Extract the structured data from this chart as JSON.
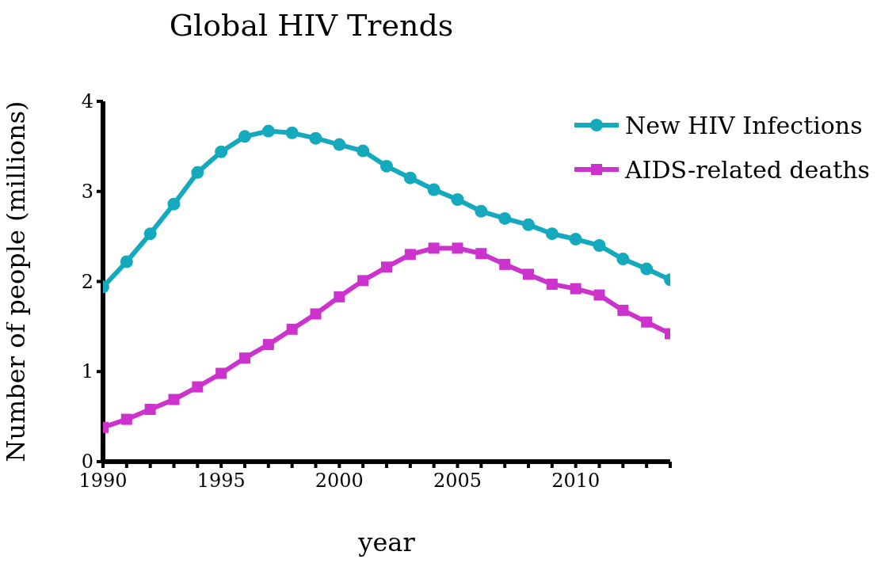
{
  "chart_data": {
    "type": "line",
    "title": "Global HIV Trends",
    "xlabel": "year",
    "ylabel": "Number of people (millions)",
    "x": [
      1990,
      1991,
      1992,
      1993,
      1994,
      1995,
      1996,
      1997,
      1998,
      1999,
      2000,
      2001,
      2002,
      2003,
      2004,
      2005,
      2006,
      2007,
      2008,
      2009,
      2010,
      2011,
      2012,
      2013,
      2014
    ],
    "series": [
      {
        "name": "New HIV Infections",
        "color": "#14a9bd",
        "marker": "circle",
        "values": [
          1.94,
          2.22,
          2.53,
          2.86,
          3.21,
          3.44,
          3.61,
          3.67,
          3.65,
          3.59,
          3.52,
          3.45,
          3.28,
          3.15,
          3.02,
          2.91,
          2.78,
          2.7,
          2.63,
          2.53,
          2.47,
          2.4,
          2.25,
          2.14,
          2.02
        ]
      },
      {
        "name": "AIDS-related deaths",
        "color": "#cc33cc",
        "marker": "square",
        "values": [
          0.38,
          0.47,
          0.58,
          0.69,
          0.83,
          0.98,
          1.15,
          1.3,
          1.47,
          1.64,
          1.83,
          2.01,
          2.16,
          2.3,
          2.37,
          2.37,
          2.31,
          2.19,
          2.08,
          1.97,
          1.92,
          1.85,
          1.68,
          1.55,
          1.42
        ]
      }
    ],
    "xlim": [
      1990,
      2014
    ],
    "xticks": [
      1990,
      {
        "value": 1991,
        "label": null
      },
      {
        "value": 1992,
        "label": null
      },
      {
        "value": 1993,
        "label": null
      },
      {
        "value": 1994,
        "label": null
      },
      1995,
      {
        "value": 1996,
        "label": null
      },
      {
        "value": 1997,
        "label": null
      },
      {
        "value": 1998,
        "label": null
      },
      {
        "value": 1999,
        "label": null
      },
      2000,
      {
        "value": 2001,
        "label": null
      },
      {
        "value": 2002,
        "label": null
      },
      {
        "value": 2003,
        "label": null
      },
      {
        "value": 2004,
        "label": null
      },
      2005,
      {
        "value": 2006,
        "label": null
      },
      {
        "value": 2007,
        "label": null
      },
      {
        "value": 2008,
        "label": null
      },
      {
        "value": 2009,
        "label": null
      },
      2010,
      {
        "value": 2011,
        "label": null
      },
      {
        "value": 2012,
        "label": null
      },
      {
        "value": 2013,
        "label": null
      },
      {
        "value": 2014,
        "label": null
      }
    ],
    "ylim": [
      0,
      4
    ],
    "yticks": [
      0,
      1,
      2,
      3,
      4
    ],
    "grid": false,
    "legend": "top right",
    "line_style": "solid"
  }
}
